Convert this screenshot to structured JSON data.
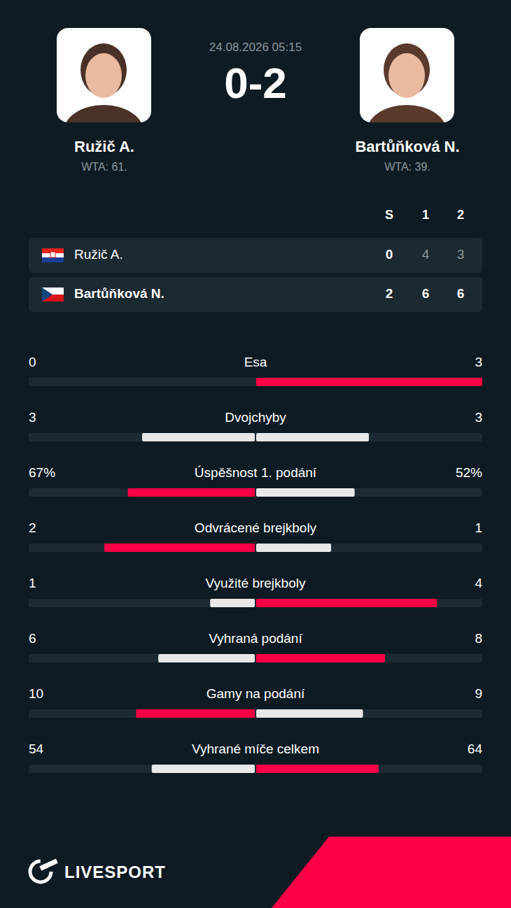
{
  "header": {
    "date": "24.08.2026 05:15",
    "score": "0-2",
    "home": {
      "name": "Ružič A.",
      "rank": "WTA: 61."
    },
    "away": {
      "name": "Bartůňková N.",
      "rank": "WTA: 39."
    }
  },
  "scoreboard": {
    "columns": [
      "S",
      "1",
      "2"
    ],
    "rows": [
      {
        "name": "Ružič A.",
        "scores": [
          0,
          4,
          3
        ]
      },
      {
        "name": "Bartůňková N.",
        "scores": [
          2,
          6,
          6
        ]
      }
    ]
  },
  "chart_data": {
    "type": "bar",
    "orientation": "horizontal",
    "data_labels": true,
    "tick_labels": false,
    "categories": [
      "Esa",
      "Dvojchyby",
      "Úspěšnost 1. podání",
      "Odvrácené brejkboly",
      "Využité brejkboly",
      "Vyhraná podání",
      "Gamy na podání",
      "Vyhrané míče celkem"
    ],
    "series": [
      {
        "name": "Ružič A.",
        "values": [
          0,
          3,
          67,
          2,
          1,
          6,
          10,
          54
        ],
        "value_labels": [
          "0",
          "3",
          "67%",
          "2",
          "1",
          "6",
          "10",
          "54"
        ]
      },
      {
        "name": "Bartůňková N.",
        "values": [
          3,
          3,
          52,
          1,
          4,
          8,
          9,
          64
        ],
        "value_labels": [
          "3",
          "3",
          "52%",
          "1",
          "4",
          "8",
          "9",
          "64"
        ]
      }
    ]
  },
  "footer": {
    "logo": "LIVESPORT"
  }
}
